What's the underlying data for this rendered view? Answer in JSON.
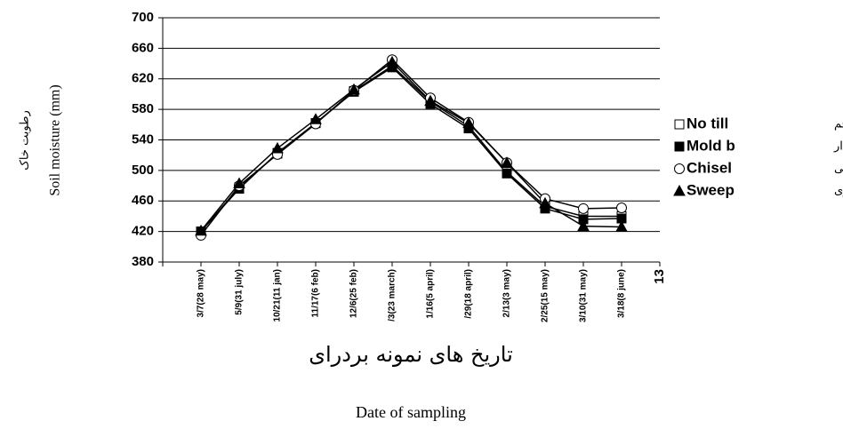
{
  "chart_data": {
    "type": "line",
    "y_label": "Soil moisture (mm)",
    "y_label_fa": "رطوبت خاک",
    "x_label": "Date of sampling",
    "x_label_fa": "تاريخ های نمونه بردرای",
    "categories": [
      "3/7(28 may)",
      "5/9(31 july)",
      "10/21(11 jan)",
      "11/17(6 feb)",
      "12/6(25 feb)",
      "/3(23 march)",
      "1/16(5 april)",
      "/29(18 april)",
      "2/13(3 may)",
      "2/25(15 may)",
      "3/10(31 may)",
      "3/18(8 june)",
      "13"
    ],
    "series": [
      {
        "name": "No till",
        "name_fa": "بدون شخم",
        "color": "#000000",
        "marker": "square-open",
        "values": [
          420,
          478,
          522,
          562,
          604,
          637,
          590,
          558,
          498,
          453,
          440,
          440,
          null
        ]
      },
      {
        "name": "Mold b",
        "name_fa": "برگردان دار",
        "color": "#000000",
        "marker": "square-filled",
        "values": [
          420,
          476,
          523,
          562,
          603,
          635,
          587,
          555,
          496,
          450,
          436,
          437,
          null
        ]
      },
      {
        "name": "Chisel",
        "name_fa": "قلمی",
        "color": "#000000",
        "marker": "circle-open",
        "values": [
          415,
          480,
          521,
          561,
          605,
          645,
          595,
          563,
          510,
          463,
          450,
          451,
          null
        ]
      },
      {
        "name": "Sweep",
        "name_fa": "پنجه غازی",
        "color": "#000000",
        "marker": "triangle-filled",
        "values": [
          421,
          483,
          529,
          567,
          606,
          642,
          591,
          562,
          510,
          457,
          427,
          426,
          null
        ]
      }
    ],
    "ylim": [
      380,
      700
    ],
    "yticks": [
      380,
      420,
      460,
      500,
      540,
      580,
      620,
      660,
      700
    ],
    "grid": true
  }
}
